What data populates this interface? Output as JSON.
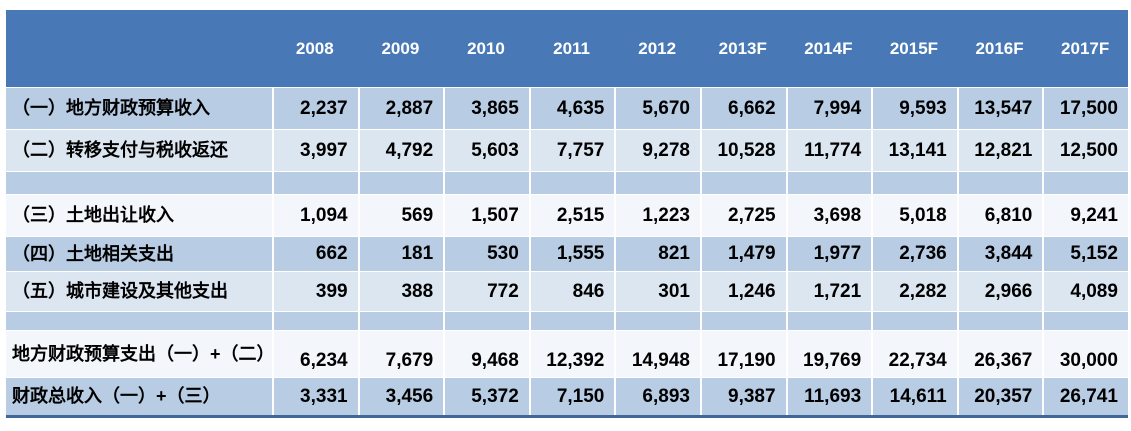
{
  "table": {
    "columns": [
      "2008",
      "2009",
      "2010",
      "2011",
      "2012",
      "2013F",
      "2014F",
      "2015F",
      "2016F",
      "2017F"
    ],
    "rows": [
      {
        "label": "（一）地方财政预算收入",
        "values": [
          "2,237",
          "2,887",
          "3,865",
          "4,635",
          "5,670",
          "6,662",
          "7,994",
          "9,593",
          "13,547",
          "17,500"
        ],
        "band": "medium",
        "kind": "normal"
      },
      {
        "label": "（二）转移支付与税收返还",
        "values": [
          "3,997",
          "4,792",
          "5,603",
          "7,757",
          "9,278",
          "10,528",
          "11,774",
          "13,141",
          "12,821",
          "12,500"
        ],
        "band": "light",
        "kind": "normal"
      },
      {
        "label": "",
        "values": [
          "",
          "",
          "",
          "",
          "",
          "",
          "",
          "",
          "",
          ""
        ],
        "band": "medium",
        "kind": "spacer"
      },
      {
        "label": "（三）土地出让收入",
        "values": [
          "1,094",
          "569",
          "1,507",
          "2,515",
          "1,223",
          "2,725",
          "3,698",
          "5,018",
          "6,810",
          "9,241"
        ],
        "band": "white",
        "kind": "normal"
      },
      {
        "label": "（四）土地相关支出",
        "values": [
          "662",
          "181",
          "530",
          "1,555",
          "821",
          "1,479",
          "1,977",
          "2,736",
          "3,844",
          "5,152"
        ],
        "band": "medium",
        "kind": "short"
      },
      {
        "label": "（五）城市建设及其他支出",
        "values": [
          "399",
          "388",
          "772",
          "846",
          "301",
          "1,246",
          "1,721",
          "2,282",
          "2,966",
          "4,089"
        ],
        "band": "light",
        "kind": "mid"
      },
      {
        "label": "",
        "values": [
          "",
          "",
          "",
          "",
          "",
          "",
          "",
          "",
          "",
          ""
        ],
        "band": "medium",
        "kind": "spacer2"
      },
      {
        "label": "地方财政预算支出（一）+（二）",
        "values": [
          "6,234",
          "7,679",
          "9,468",
          "12,392",
          "14,948",
          "17,190",
          "19,769",
          "22,734",
          "26,367",
          "30,000"
        ],
        "band": "white",
        "kind": "twoline"
      },
      {
        "label": "财政总收入（一）+（三）",
        "values": [
          "3,331",
          "3,456",
          "5,372",
          "7,150",
          "6,893",
          "9,387",
          "11,693",
          "14,611",
          "20,357",
          "26,741"
        ],
        "band": "medium",
        "kind": "last"
      }
    ],
    "colors": {
      "header_bg": "#4879b6",
      "header_text": "#ffffff",
      "band_medium": "#b8cce4",
      "band_light": "#dce6f1",
      "band_white": "#f3f6fa",
      "separator": "#ffffff",
      "bottom_border": "#3f6899",
      "body_text": "#000000"
    }
  }
}
